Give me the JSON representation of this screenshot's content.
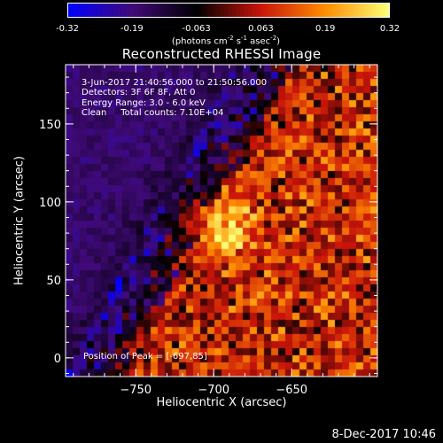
{
  "colorbar": {
    "tick_labels": [
      "-0.32",
      "-0.19",
      "-0.063",
      "0.063",
      "0.19",
      "0.32"
    ],
    "unit_text": "(photons cm",
    "unit_exp1": "-2",
    "unit_mid1": " s",
    "unit_exp2": "-1",
    "unit_mid2": " asec",
    "unit_exp3": "-2",
    "unit_end": ")",
    "range": [
      -0.32,
      0.32
    ]
  },
  "annotations": {
    "time": "3-Jun-2017 21:40:56.000 to 21:50:56.000",
    "detectors": "Detectors: 3F 6F 8F, Att 0",
    "energy": "Energy Range: 3.0 - 6.0 keV",
    "clean": "Clean     Total counts: 7.10E+04",
    "peak": "Position of Peak = [-697,85]"
  },
  "timestamp": "8-Dec-2017 10:46",
  "chart_data": {
    "type": "heatmap",
    "title": "Reconstructed RHESSI Image",
    "xlabel": "Heliocentric X (arcsec)",
    "ylabel": "Heliocentric Y (arcsec)",
    "xlim": [
      -795,
      -595
    ],
    "ylim": [
      -12,
      188
    ],
    "x_ticks": [
      -750,
      -700,
      -650
    ],
    "y_ticks": [
      0,
      50,
      100,
      150
    ],
    "colorscale": [
      "#0000ff",
      "#400a78",
      "#000000",
      "#c8140a",
      "#ff8c00",
      "#ffff78"
    ],
    "peak": {
      "x": -697,
      "y": 85,
      "value": 0.32
    }
  }
}
